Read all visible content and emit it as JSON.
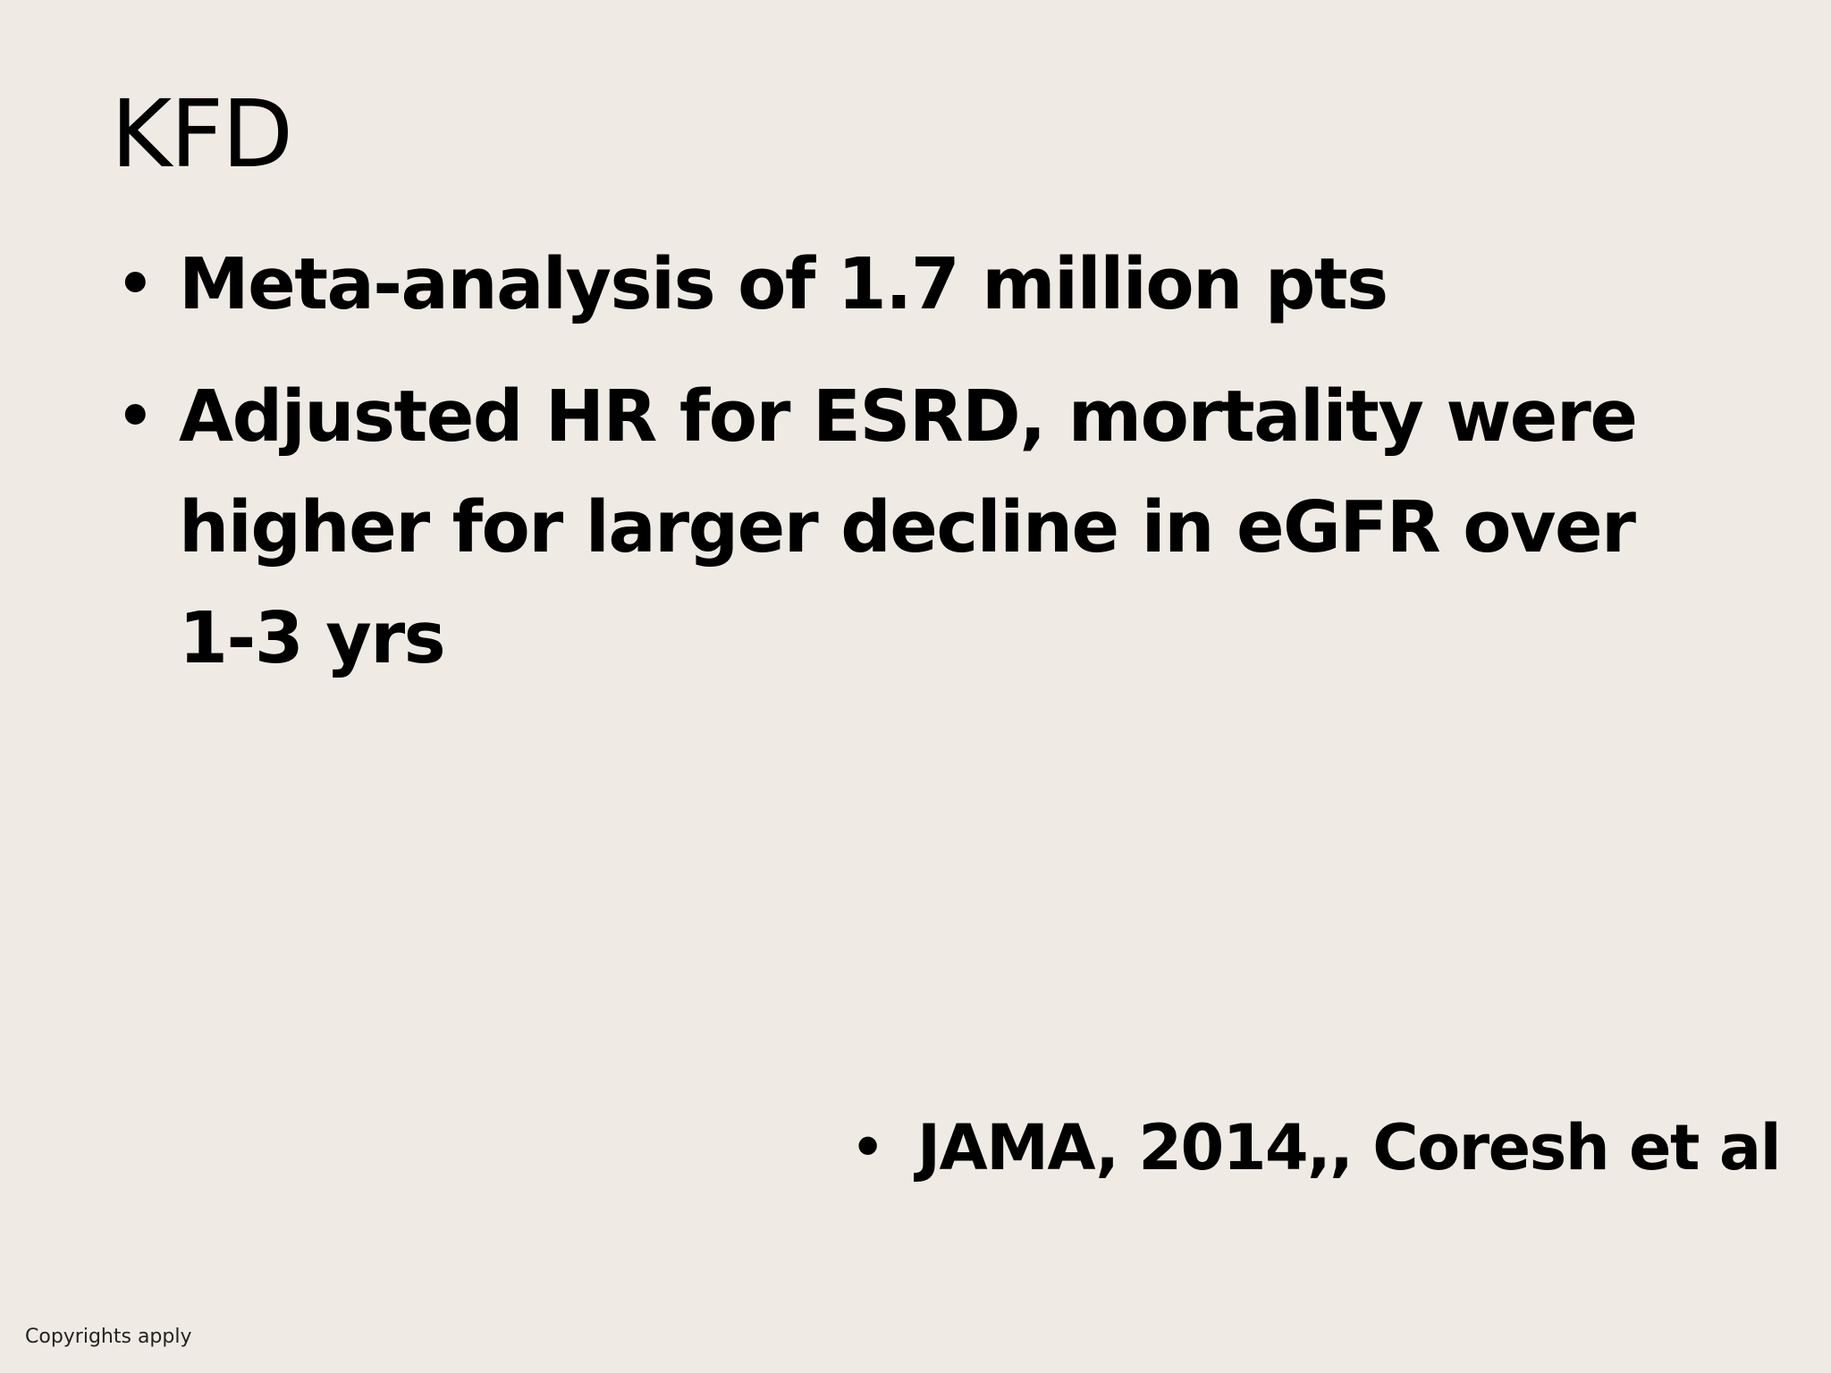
{
  "slide": {
    "title": "KFD",
    "bullets": [
      {
        "text": "Meta-analysis of 1.7 million pts"
      },
      {
        "text": "Adjusted HR for ESRD, mortality were higher for larger decline in eGFR over 1-3 yrs"
      }
    ],
    "bullet_glyph": "•",
    "citation": "JAMA, 2014,, Coresh et al",
    "footer": "Copyrights apply"
  },
  "colors": {
    "background": "#efebe4",
    "text": "#000000"
  }
}
